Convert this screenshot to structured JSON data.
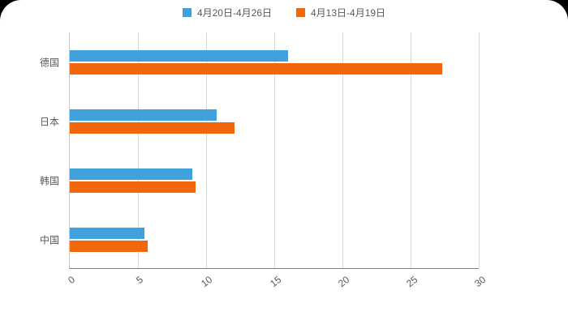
{
  "chart_data": {
    "type": "bar",
    "orientation": "horizontal",
    "title": "",
    "categories": [
      "德国",
      "日本",
      "韩国",
      "中国"
    ],
    "series": [
      {
        "name": "4月20日-4月26日",
        "color": "#41a1dc",
        "values": [
          16,
          10.8,
          9,
          5.5
        ]
      },
      {
        "name": "4月13日-4月19日",
        "color": "#f2670b",
        "values": [
          27.3,
          12.1,
          9.2,
          5.7
        ]
      }
    ],
    "x_ticks": [
      0,
      5,
      10,
      15,
      20,
      25,
      30
    ],
    "xlim": [
      0,
      30
    ],
    "grid": true,
    "legend_position": "top",
    "gridline_color": "#d9d9d9",
    "axis_line_color": "#7f7f7f",
    "axis_label_color": "#595959",
    "background_color": "#ffffff",
    "page_background": "#000000"
  }
}
